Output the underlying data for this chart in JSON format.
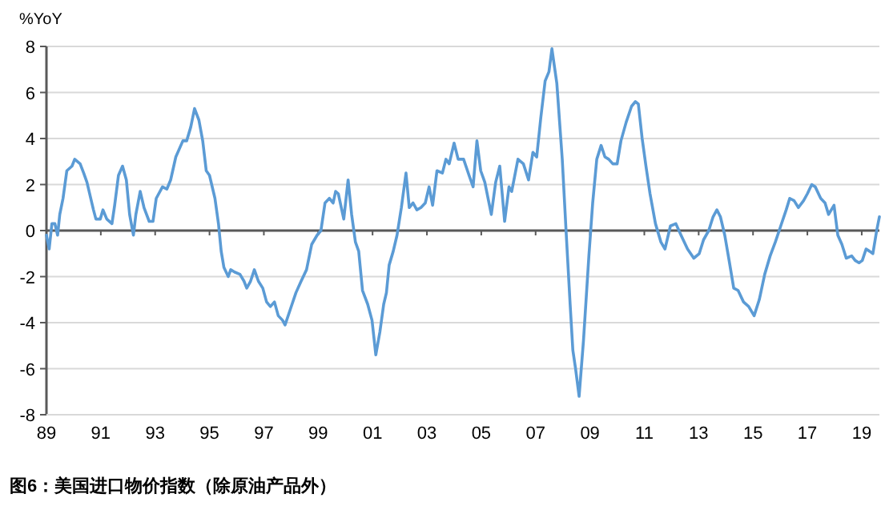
{
  "chart_data": {
    "type": "line",
    "title": "图6：美国进口物价指数（除原油产品外）",
    "ylabel": "%YoY",
    "xlim": [
      1989,
      2019.65
    ],
    "ylim": [
      -8,
      8
    ],
    "xticks": [
      {
        "value": 1989,
        "label": "89"
      },
      {
        "value": 1991,
        "label": "91"
      },
      {
        "value": 1993,
        "label": "93"
      },
      {
        "value": 1995,
        "label": "95"
      },
      {
        "value": 1997,
        "label": "97"
      },
      {
        "value": 1999,
        "label": "99"
      },
      {
        "value": 2001,
        "label": "01"
      },
      {
        "value": 2003,
        "label": "03"
      },
      {
        "value": 2005,
        "label": "05"
      },
      {
        "value": 2007,
        "label": "07"
      },
      {
        "value": 2009,
        "label": "09"
      },
      {
        "value": 2011,
        "label": "11"
      },
      {
        "value": 2013,
        "label": "13"
      },
      {
        "value": 2015,
        "label": "15"
      },
      {
        "value": 2017,
        "label": "17"
      },
      {
        "value": 2019,
        "label": "19"
      }
    ],
    "yticks": [
      -8,
      -6,
      -4,
      -2,
      0,
      2,
      4,
      6,
      8
    ],
    "grid": "y",
    "series": [
      {
        "color": "#5b9bd5",
        "x": [
          1989.0,
          1989.1,
          1989.2,
          1989.31,
          1989.41,
          1989.49,
          1989.61,
          1989.75,
          1989.94,
          1990.04,
          1990.24,
          1990.37,
          1990.49,
          1990.73,
          1990.82,
          1990.98,
          1991.08,
          1991.22,
          1991.41,
          1991.51,
          1991.65,
          1991.8,
          1991.94,
          1992.06,
          1992.2,
          1992.29,
          1992.45,
          1992.59,
          1992.78,
          1992.92,
          1993.04,
          1993.27,
          1993.43,
          1993.57,
          1993.76,
          1994.02,
          1994.16,
          1994.31,
          1994.45,
          1994.61,
          1994.75,
          1994.88,
          1995.0,
          1995.2,
          1995.33,
          1995.43,
          1995.53,
          1995.69,
          1995.78,
          1995.92,
          1996.12,
          1996.27,
          1996.37,
          1996.51,
          1996.65,
          1996.8,
          1996.96,
          1997.1,
          1997.24,
          1997.39,
          1997.53,
          1997.69,
          1997.78,
          1997.98,
          1998.18,
          1998.37,
          1998.57,
          1998.76,
          1998.96,
          1999.1,
          1999.25,
          1999.41,
          1999.55,
          1999.64,
          1999.74,
          1999.94,
          2000.1,
          2000.23,
          2000.37,
          2000.49,
          2000.63,
          2000.82,
          2000.98,
          2001.12,
          2001.27,
          2001.41,
          2001.51,
          2001.61,
          2001.76,
          2001.9,
          2002.06,
          2002.23,
          2002.35,
          2002.49,
          2002.63,
          2002.78,
          2002.94,
          2003.08,
          2003.21,
          2003.37,
          2003.57,
          2003.7,
          2003.82,
          2004.0,
          2004.15,
          2004.35,
          2004.55,
          2004.7,
          2004.84,
          2004.98,
          2005.13,
          2005.37,
          2005.53,
          2005.68,
          2005.86,
          2006.02,
          2006.12,
          2006.35,
          2006.55,
          2006.74,
          2006.9,
          2007.04,
          2007.19,
          2007.35,
          2007.49,
          2007.6,
          2007.78,
          2007.98,
          2008.12,
          2008.27,
          2008.37,
          2008.47,
          2008.6,
          2008.76,
          2008.96,
          2009.1,
          2009.25,
          2009.41,
          2009.55,
          2009.69,
          2009.84,
          2010.0,
          2010.14,
          2010.33,
          2010.53,
          2010.67,
          2010.78,
          2010.92,
          2011.06,
          2011.21,
          2011.41,
          2011.61,
          2011.76,
          2011.96,
          2012.16,
          2012.35,
          2012.59,
          2012.82,
          2013.02,
          2013.18,
          2013.37,
          2013.53,
          2013.67,
          2013.8,
          2013.96,
          2014.12,
          2014.29,
          2014.45,
          2014.65,
          2014.84,
          2015.04,
          2015.23,
          2015.43,
          2015.63,
          2015.82,
          2016.02,
          2016.22,
          2016.35,
          2016.51,
          2016.67,
          2016.86,
          2017.0,
          2017.16,
          2017.29,
          2017.49,
          2017.65,
          2017.78,
          2017.98,
          2018.12,
          2018.27,
          2018.43,
          2018.63,
          2018.76,
          2018.9,
          2019.02,
          2019.16,
          2019.29,
          2019.41,
          2019.55,
          2019.65
        ],
        "values": [
          -0.2,
          -0.8,
          0.3,
          0.3,
          -0.2,
          0.7,
          1.4,
          2.6,
          2.8,
          3.1,
          2.9,
          2.5,
          2.1,
          0.9,
          0.5,
          0.5,
          0.9,
          0.5,
          0.3,
          1.1,
          2.4,
          2.8,
          2.2,
          0.7,
          -0.2,
          0.7,
          1.7,
          1.0,
          0.4,
          0.4,
          1.4,
          1.9,
          1.8,
          2.2,
          3.2,
          3.9,
          3.9,
          4.5,
          5.3,
          4.8,
          3.9,
          2.6,
          2.4,
          1.4,
          0.3,
          -0.9,
          -1.6,
          -2.0,
          -1.7,
          -1.8,
          -1.9,
          -2.2,
          -2.5,
          -2.2,
          -1.7,
          -2.2,
          -2.5,
          -3.1,
          -3.3,
          -3.1,
          -3.7,
          -3.9,
          -4.1,
          -3.4,
          -2.7,
          -2.2,
          -1.7,
          -0.6,
          -0.2,
          0,
          1.2,
          1.4,
          1.2,
          1.7,
          1.6,
          0.5,
          2.2,
          0.7,
          -0.5,
          -0.9,
          -2.6,
          -3.2,
          -3.9,
          -5.4,
          -4.4,
          -3.2,
          -2.7,
          -1.5,
          -0.9,
          -0.2,
          1.0,
          2.5,
          1.0,
          1.2,
          0.9,
          1.0,
          1.2,
          1.9,
          1.1,
          2.6,
          2.5,
          3.1,
          2.9,
          3.8,
          3.1,
          3.1,
          2.4,
          1.9,
          3.9,
          2.6,
          2.1,
          0.7,
          2.1,
          2.8,
          0.4,
          1.9,
          1.7,
          3.1,
          2.9,
          2.2,
          3.4,
          3.2,
          4.9,
          6.5,
          6.9,
          7.9,
          6.4,
          3.1,
          0,
          -3.2,
          -5.2,
          -6.0,
          -7.2,
          -4.8,
          -1.1,
          1.2,
          3.1,
          3.7,
          3.2,
          3.1,
          2.9,
          2.9,
          3.9,
          4.7,
          5.4,
          5.6,
          5.5,
          4.0,
          2.8,
          1.6,
          0.3,
          -0.5,
          -0.8,
          0.2,
          0.3,
          -0.2,
          -0.8,
          -1.2,
          -1.0,
          -0.4,
          0,
          0.6,
          0.9,
          0.6,
          -0.2,
          -1.3,
          -2.5,
          -2.6,
          -3.1,
          -3.3,
          -3.7,
          -3.0,
          -1.9,
          -1.1,
          -0.5,
          0.2,
          0.9,
          1.4,
          1.3,
          1.0,
          1.3,
          1.6,
          2.0,
          1.9,
          1.4,
          1.2,
          0.7,
          1.1,
          -0.2,
          -0.6,
          -1.2,
          -1.1,
          -1.3,
          -1.4,
          -1.3,
          -0.8,
          -0.9,
          -1.0,
          0,
          0.6
        ]
      }
    ]
  }
}
